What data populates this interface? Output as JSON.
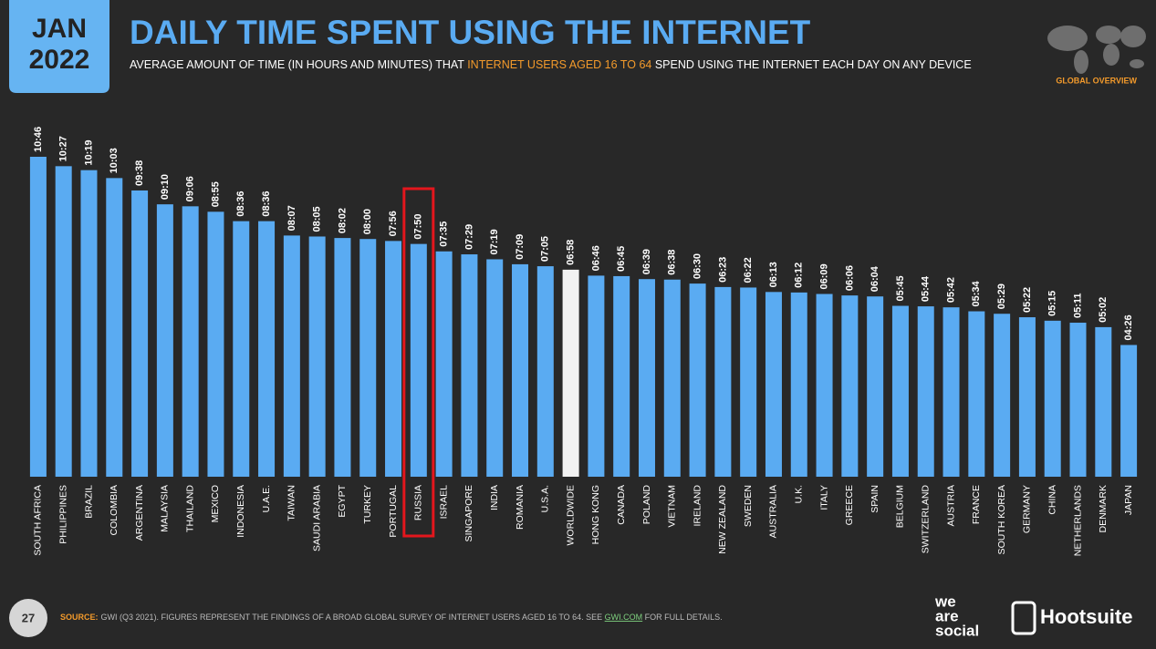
{
  "header": {
    "month": "JAN",
    "year": "2022",
    "section": "GLOBAL OVERVIEW",
    "page": "27"
  },
  "chart_data": {
    "type": "bar",
    "title": "DAILY TIME SPENT USING THE INTERNET",
    "subtitle": [
      "AVERAGE AMOUNT OF TIME (IN HOURS AND MINUTES) THAT ",
      "INTERNET USERS AGED 16 TO 64",
      " SPEND USING THE INTERNET EACH DAY ON ANY DEVICE"
    ],
    "categories": [
      "SOUTH AFRICA",
      "PHILIPPINES",
      "BRAZIL",
      "COLOMBIA",
      "ARGENTINA",
      "MALAYSIA",
      "THAILAND",
      "MEXICO",
      "INDONESIA",
      "U.A.E.",
      "TAIWAN",
      "SAUDI ARABIA",
      "EGYPT",
      "TURKEY",
      "PORTUGAL",
      "RUSSIA",
      "ISRAEL",
      "SINGAPORE",
      "INDIA",
      "ROMANIA",
      "U.S.A.",
      "WORLDWIDE",
      "HONG KONG",
      "CANADA",
      "POLAND",
      "VIETNAM",
      "IRELAND",
      "NEW ZEALAND",
      "SWEDEN",
      "AUSTRALIA",
      "U.K.",
      "ITALY",
      "GREECE",
      "SPAIN",
      "BELGIUM",
      "SWITZERLAND",
      "AUSTRIA",
      "FRANCE",
      "SOUTH KOREA",
      "GERMANY",
      "CHINA",
      "NETHERLANDS",
      "DENMARK",
      "JAPAN"
    ],
    "values": [
      646,
      627,
      619,
      603,
      578,
      550,
      546,
      535,
      516,
      516,
      487,
      485,
      482,
      480,
      476,
      470,
      455,
      449,
      439,
      429,
      425,
      418,
      406,
      405,
      399,
      398,
      390,
      383,
      382,
      373,
      372,
      369,
      366,
      364,
      345,
      344,
      342,
      334,
      329,
      322,
      315,
      311,
      302,
      266
    ],
    "value_labels": [
      "10:46",
      "10:27",
      "10:19",
      "10:03",
      "09:38",
      "09:10",
      "09:06",
      "08:55",
      "08:36",
      "08:36",
      "08:07",
      "08:05",
      "08:02",
      "08:00",
      "07:56",
      "07:50",
      "07:35",
      "07:29",
      "07:19",
      "07:09",
      "07:05",
      "06:58",
      "06:46",
      "06:45",
      "06:39",
      "06:38",
      "06:30",
      "06:23",
      "06:22",
      "06:13",
      "06:12",
      "06:09",
      "06:06",
      "06:04",
      "05:45",
      "05:44",
      "05:42",
      "05:34",
      "05:29",
      "05:22",
      "05:15",
      "05:11",
      "05:02",
      "04:26"
    ],
    "color": "#5aabf2",
    "reference": "WORLDWIDE",
    "reference_color": "#f2f2f2",
    "highlight": "RUSSIA",
    "highlight_color": "#e3161d"
  },
  "footer": {
    "source_label": "SOURCE:",
    "source": "GWI (Q3 2021). FIGURES REPRESENT THE FINDINGS OF A BROAD GLOBAL SURVEY OF INTERNET USERS AGED 16 TO 64. SEE ",
    "link": "GWI.COM",
    "source_end": " FOR FULL DETAILS.",
    "logo1": [
      "we",
      "are",
      "social"
    ],
    "logo2": "Hootsuite"
  }
}
